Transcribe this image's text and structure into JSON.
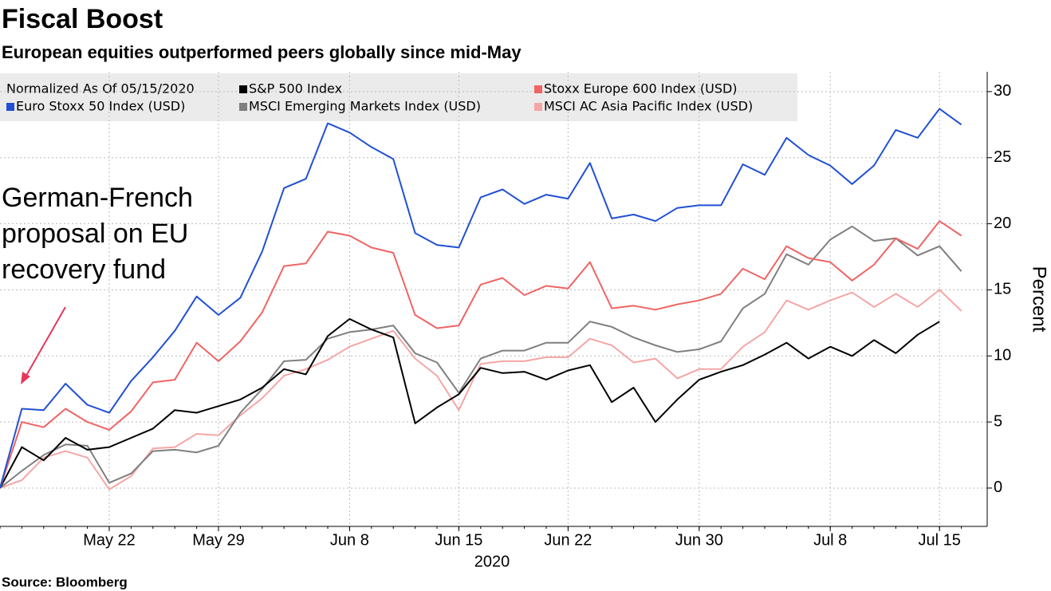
{
  "chart_data": {
    "type": "line",
    "title": "Fiscal Boost",
    "subtitle": "European equities outperformed peers globally since mid-May",
    "legend_title": "Normalized As Of 05/15/2020",
    "annotation": "German-French proposal on EU recovery fund",
    "ylabel": "Percent",
    "xlabel": "2020",
    "source": "Source: Bloomberg",
    "x": [
      "2020-05-15",
      "2020-05-18",
      "2020-05-19",
      "2020-05-20",
      "2020-05-21",
      "2020-05-22",
      "2020-05-25",
      "2020-05-26",
      "2020-05-27",
      "2020-05-28",
      "2020-05-29",
      "2020-06-01",
      "2020-06-02",
      "2020-06-03",
      "2020-06-04",
      "2020-06-05",
      "2020-06-08",
      "2020-06-09",
      "2020-06-10",
      "2020-06-11",
      "2020-06-12",
      "2020-06-15",
      "2020-06-16",
      "2020-06-17",
      "2020-06-18",
      "2020-06-19",
      "2020-06-22",
      "2020-06-23",
      "2020-06-24",
      "2020-06-25",
      "2020-06-26",
      "2020-06-29",
      "2020-06-30",
      "2020-07-01",
      "2020-07-02",
      "2020-07-03",
      "2020-07-06",
      "2020-07-07",
      "2020-07-08",
      "2020-07-09",
      "2020-07-10",
      "2020-07-13",
      "2020-07-14",
      "2020-07-15",
      "2020-07-16"
    ],
    "xticks": [
      {
        "value": "2020-05-22",
        "label": "May 22"
      },
      {
        "value": "2020-05-29",
        "label": "May 29"
      },
      {
        "value": "2020-06-08",
        "label": "Jun 8"
      },
      {
        "value": "2020-06-15",
        "label": "Jun 15"
      },
      {
        "value": "2020-06-22",
        "label": "Jun 22"
      },
      {
        "value": "2020-06-30",
        "label": "Jun 30"
      },
      {
        "value": "2020-07-08",
        "label": "Jul 8"
      },
      {
        "value": "2020-07-15",
        "label": "Jul 15"
      }
    ],
    "ylim": [
      -2.9,
      31.5
    ],
    "yticks": [
      0,
      5,
      10,
      15,
      20,
      25,
      30
    ],
    "grid": true,
    "series": [
      {
        "name": "S&P 500 Index",
        "color": "#000000",
        "values": [
          0,
          3.1,
          2.1,
          3.8,
          2.9,
          3.1,
          3.8,
          4.5,
          5.9,
          5.7,
          6.2,
          6.7,
          7.6,
          9.0,
          8.6,
          11.5,
          12.8,
          12.0,
          11.4,
          4.9,
          6.1,
          7.1,
          9.1,
          8.7,
          8.8,
          8.2,
          8.9,
          9.3,
          6.5,
          7.6,
          5.0,
          6.7,
          8.2,
          8.8,
          9.3,
          10.1,
          11.0,
          9.8,
          10.7,
          10.0,
          11.2,
          10.2,
          11.6,
          12.6,
          null
        ]
      },
      {
        "name": "Stoxx Europe 600 Index (USD)",
        "color": "#f06464",
        "values": [
          0,
          5.0,
          4.6,
          6.0,
          5.0,
          4.4,
          5.8,
          8.0,
          8.2,
          11.0,
          9.6,
          11.1,
          13.3,
          16.8,
          17.0,
          19.4,
          19.1,
          18.2,
          17.8,
          13.1,
          12.1,
          12.3,
          15.4,
          15.9,
          14.6,
          15.3,
          15.1,
          17.1,
          13.6,
          13.8,
          13.5,
          13.9,
          14.2,
          14.7,
          16.6,
          15.8,
          18.3,
          17.4,
          17.1,
          15.7,
          16.9,
          18.9,
          18.1,
          20.2,
          19.1
        ]
      },
      {
        "name": "Euro Stoxx 50 Index (USD)",
        "color": "#2150d4",
        "values": [
          0,
          6.0,
          5.9,
          7.9,
          6.3,
          5.7,
          8.1,
          9.9,
          11.9,
          14.5,
          13.1,
          14.4,
          17.9,
          22.7,
          23.4,
          27.6,
          26.9,
          25.8,
          24.9,
          19.3,
          18.4,
          18.2,
          22.0,
          22.6,
          21.5,
          22.2,
          21.9,
          24.6,
          20.4,
          20.7,
          20.2,
          21.2,
          21.4,
          21.4,
          24.5,
          23.7,
          26.5,
          25.2,
          24.4,
          23.0,
          24.4,
          27.1,
          26.5,
          28.7,
          27.5
        ]
      },
      {
        "name": "MSCI Emerging Markets Index (USD)",
        "color": "#7f7f7f",
        "values": [
          0,
          1.3,
          2.5,
          3.3,
          3.2,
          0.4,
          1.1,
          2.8,
          2.9,
          2.7,
          3.2,
          5.7,
          7.5,
          9.6,
          9.7,
          11.3,
          11.8,
          12.0,
          12.3,
          10.2,
          9.5,
          7.2,
          9.8,
          10.4,
          10.4,
          11.0,
          11.0,
          12.6,
          12.2,
          11.4,
          10.8,
          10.3,
          10.5,
          11.1,
          13.6,
          14.7,
          17.7,
          16.9,
          18.8,
          19.8,
          18.7,
          18.9,
          17.6,
          18.3,
          16.4
        ]
      },
      {
        "name": "MSCI AC Asia Pacific Index (USD)",
        "color": "#f5a6a6",
        "values": [
          0,
          0.6,
          2.3,
          2.8,
          2.3,
          -0.1,
          0.9,
          3.0,
          3.1,
          4.1,
          4.0,
          5.5,
          6.8,
          8.5,
          9.0,
          9.7,
          10.7,
          11.3,
          11.9,
          9.8,
          8.5,
          5.9,
          9.4,
          9.6,
          9.6,
          9.9,
          9.9,
          11.3,
          10.8,
          9.5,
          9.8,
          8.3,
          9.0,
          9.0,
          10.7,
          11.8,
          14.2,
          13.5,
          14.2,
          14.8,
          13.7,
          14.7,
          13.7,
          15.0,
          13.4
        ]
      }
    ]
  }
}
